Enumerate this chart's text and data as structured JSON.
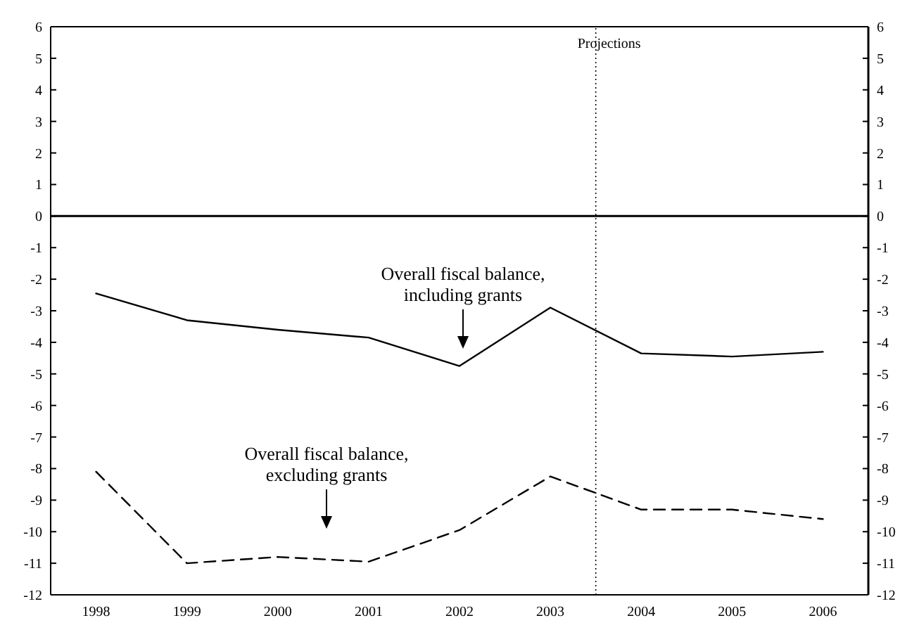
{
  "chart_data": {
    "type": "line",
    "x": [
      1998,
      1999,
      2000,
      2001,
      2002,
      2003,
      2004,
      2005,
      2006
    ],
    "xlim": [
      1997.5,
      2006.5
    ],
    "xticks": [
      1998,
      1999,
      2000,
      2001,
      2002,
      2003,
      2004,
      2005,
      2006
    ],
    "series": [
      {
        "color": "#000000",
        "line_style": "solid",
        "values": [
          -2.45,
          -3.3,
          -3.6,
          -3.85,
          -4.75,
          -2.9,
          -4.35,
          -4.45,
          -4.3
        ]
      },
      {
        "color": "#000000",
        "line_style": "dashed",
        "values": [
          -8.1,
          -11.0,
          -10.8,
          -10.95,
          -9.95,
          -8.25,
          -9.3,
          -9.3,
          -9.6
        ]
      }
    ],
    "ylim": [
      -12,
      6
    ],
    "yticks": [
      -12,
      -11,
      -10,
      -9,
      -8,
      -7,
      -6,
      -5,
      -4,
      -3,
      -2,
      -1,
      0,
      1,
      2,
      3,
      4,
      5,
      6
    ],
    "y2lim": [
      -12,
      6
    ],
    "y2ticks": [
      -12,
      -11,
      -10,
      -9,
      -8,
      -7,
      -6,
      -5,
      -4,
      -3,
      -2,
      -1,
      0,
      1,
      2,
      3,
      4,
      5,
      6
    ],
    "ref_lines": [
      {
        "axis": "x",
        "value": 2003.5,
        "label": "Projections",
        "line_style": "dotted"
      },
      {
        "axis": "y",
        "value": 0,
        "label": null
      }
    ],
    "annotations": [
      "Overall fiscal balance, including grants",
      "Overall fiscal balance, excluding grants"
    ],
    "marker": "none"
  }
}
